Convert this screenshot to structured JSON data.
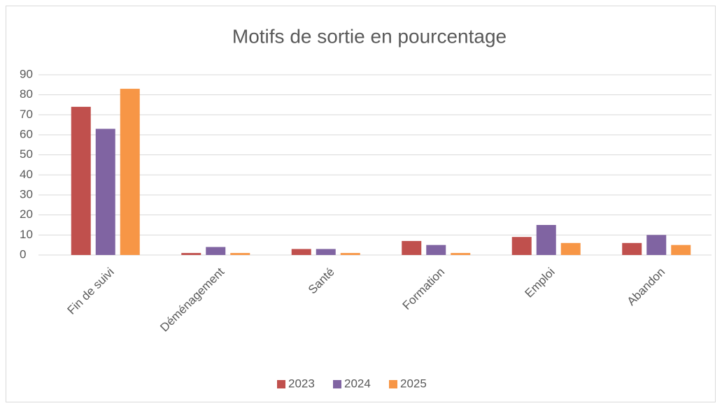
{
  "chart_data": {
    "type": "bar",
    "title": "Motifs de sortie en pourcentage",
    "categories": [
      "Fin de suivi",
      "Déménagement",
      "Santé",
      "Formation",
      "Emploi",
      "Abandon"
    ],
    "series": [
      {
        "name": "2023",
        "color": "#c0504d",
        "values": [
          74,
          1,
          3,
          7,
          9,
          6
        ]
      },
      {
        "name": "2024",
        "color": "#8064a2",
        "values": [
          63,
          4,
          3,
          5,
          15,
          10
        ]
      },
      {
        "name": "2025",
        "color": "#f79646",
        "values": [
          83,
          1,
          1,
          1,
          6,
          5
        ]
      }
    ],
    "ylim": [
      0,
      90
    ],
    "yticks": [
      0,
      10,
      20,
      30,
      40,
      50,
      60,
      70,
      80,
      90
    ],
    "grid": true,
    "legend": "bottom"
  }
}
